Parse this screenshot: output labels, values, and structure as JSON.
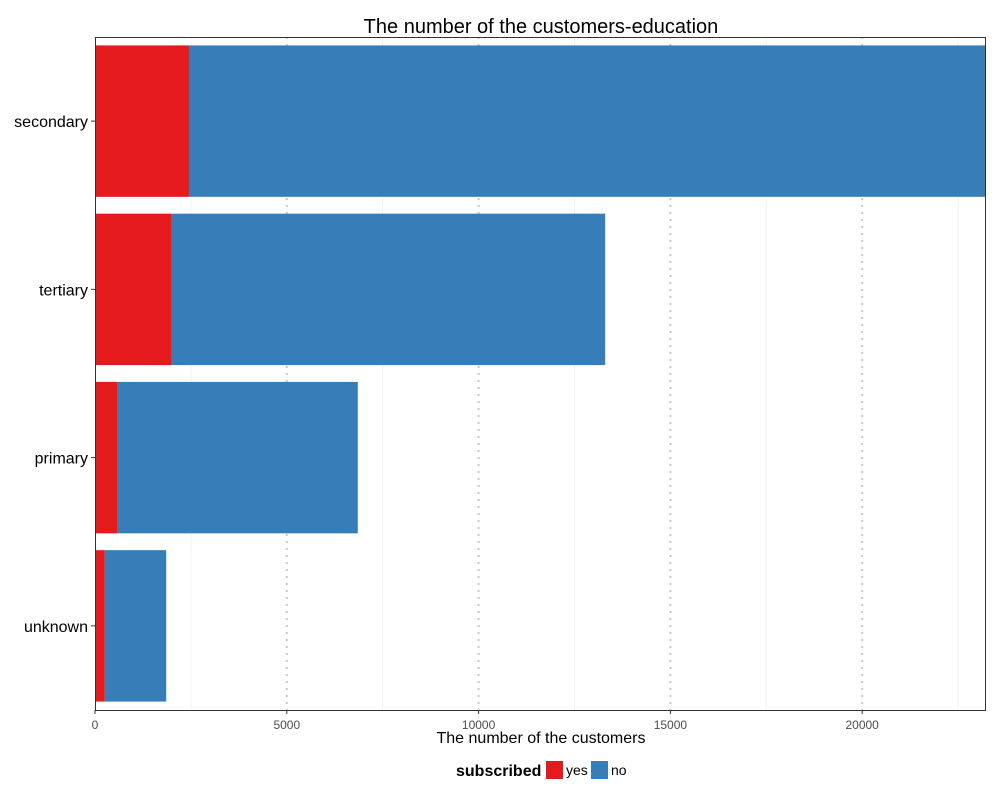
{
  "chart_data": {
    "type": "bar",
    "orientation": "horizontal",
    "stacked": true,
    "title": "The number of the customers-education",
    "xlabel": "The number of the customers",
    "ylabel": "",
    "categories": [
      "secondary",
      "tertiary",
      "primary",
      "unknown"
    ],
    "series": [
      {
        "name": "yes",
        "color": "#E41A1C",
        "values": [
          2450,
          1996,
          591,
          257
        ]
      },
      {
        "name": "no",
        "color": "#377EB8",
        "values": [
          20752,
          11305,
          6260,
          1600
        ]
      }
    ],
    "xlim": [
      0,
      23202
    ],
    "xticks": [
      0,
      5000,
      10000,
      15000,
      20000
    ],
    "grid": {
      "vertical_major": true,
      "vertical_minor": true,
      "style": "dotted"
    },
    "legend": {
      "title": "subscribed",
      "placement": "bottom"
    }
  }
}
